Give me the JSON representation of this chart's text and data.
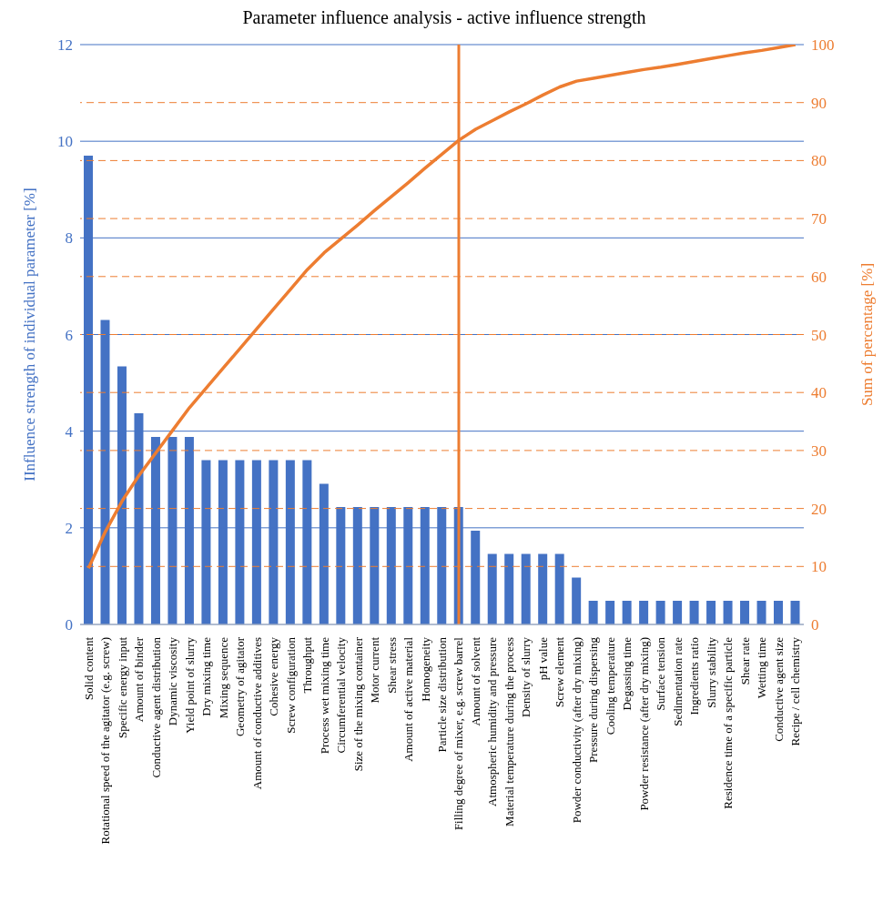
{
  "chart_data": {
    "type": "bar",
    "title": "Parameter influence analysis - active influence strength",
    "ylabel": "IInfluence strength of individual parameter [%]",
    "y2label": "Sum of percentage [%]",
    "categories": [
      "Solid content",
      "Rotational speed of the agitator (e.g. screw)",
      "Specific energy input",
      "Amount of binder",
      "Conductive agent distribution",
      "Dynamic viscosity",
      "Yield point of slurry",
      "Dry mixing time",
      "Mixing sequence",
      "Geometry of agitator",
      "Amount of conductive additives",
      "Cohesive energy",
      "Screw configuration",
      "Throughput",
      "Process wet mixing time",
      "Circumferential velocity",
      "Size of the mixing container",
      "Motor current",
      "Shear stress",
      "Amount of active material",
      "Homogeneity",
      "Particle size distribution",
      "Filling degree of mixer, e.g. screw barrel",
      "Amount of solvent",
      "Atmospheric humidity and pressure",
      "Material temperature during the process",
      "Density of slurry",
      "pH value",
      "Screw element",
      "Powder conductivity (after dry mixing)",
      "Pressure during dispersing",
      "Cooling temperature",
      "Degassing time",
      "Powder resistance (after dry mixing)",
      "Surface tension",
      "Sedimentation rate",
      "Ingredients ratio",
      "Slurry stability",
      "Residence time of a specific particle",
      "Shear rate",
      "Wetting time",
      "Conductive agent size",
      "Recipe / cell chemistry"
    ],
    "series": [
      {
        "color": "#4472c4",
        "values": [
          9.7,
          6.3,
          5.34,
          4.37,
          3.88,
          3.88,
          3.88,
          3.4,
          3.4,
          3.4,
          3.4,
          3.4,
          3.4,
          3.4,
          2.91,
          2.43,
          2.43,
          2.43,
          2.43,
          2.43,
          2.43,
          2.43,
          2.43,
          1.94,
          1.46,
          1.46,
          1.46,
          1.46,
          1.46,
          0.97,
          0.49,
          0.49,
          0.49,
          0.49,
          0.49,
          0.49,
          0.49,
          0.49,
          0.49,
          0.49,
          0.49,
          0.49,
          0.49
        ]
      },
      {
        "type": "line",
        "axis": "y2",
        "color": "#ed7d31",
        "values": [
          9.7,
          16.0,
          21.3,
          25.7,
          29.6,
          33.5,
          37.4,
          40.8,
          44.2,
          47.6,
          51.0,
          54.4,
          57.8,
          61.2,
          64.1,
          66.5,
          68.9,
          71.4,
          73.8,
          76.2,
          78.7,
          81.1,
          83.5,
          85.4,
          86.9,
          88.4,
          89.8,
          91.3,
          92.7,
          93.7,
          94.2,
          94.7,
          95.2,
          95.7,
          96.1,
          96.6,
          97.1,
          97.6,
          98.1,
          98.6,
          99.0,
          99.5,
          100
        ]
      }
    ],
    "ylim": [
      0,
      12
    ],
    "yticks": [
      0,
      2,
      4,
      6,
      8,
      10,
      12
    ],
    "y2lim": [
      0,
      100
    ],
    "y2ticks": [
      0,
      10,
      20,
      30,
      40,
      50,
      60,
      70,
      80,
      90,
      100
    ],
    "ref_lines": [
      {
        "axis": "x",
        "value": "Filling degree of mixer, e.g. screw barrel",
        "color": "#ed7d31",
        "line_style": "solid"
      }
    ],
    "grid": true,
    "legend": false,
    "marker": "none",
    "line_style": "solid"
  }
}
